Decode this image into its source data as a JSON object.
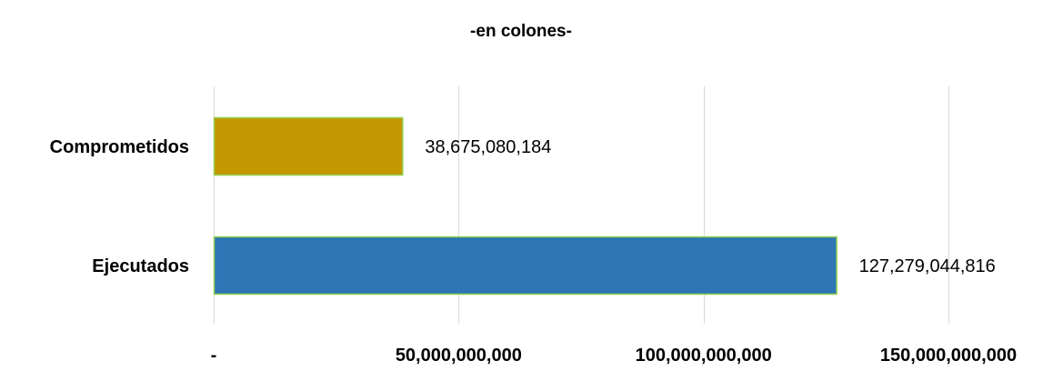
{
  "chart_data": {
    "type": "bar",
    "orientation": "horizontal",
    "title": "-en colones-",
    "categories": [
      "Comprometidos",
      "Ejecutados"
    ],
    "values": [
      38675080184,
      127279044816
    ],
    "value_labels": [
      "38,675,080,184",
      "127,279,044,816"
    ],
    "colors": [
      "#c49800",
      "#2e75b6"
    ],
    "bar_border_color": "#92d050",
    "xlim": [
      0,
      150000000000
    ],
    "x_ticks": [
      0,
      50000000000,
      100000000000,
      150000000000
    ],
    "x_tick_labels": [
      "-",
      "50,000,000,000",
      "100,000,000,000",
      "150,000,000,000"
    ],
    "grid": true,
    "legend": "none",
    "xlabel": "",
    "ylabel": ""
  }
}
